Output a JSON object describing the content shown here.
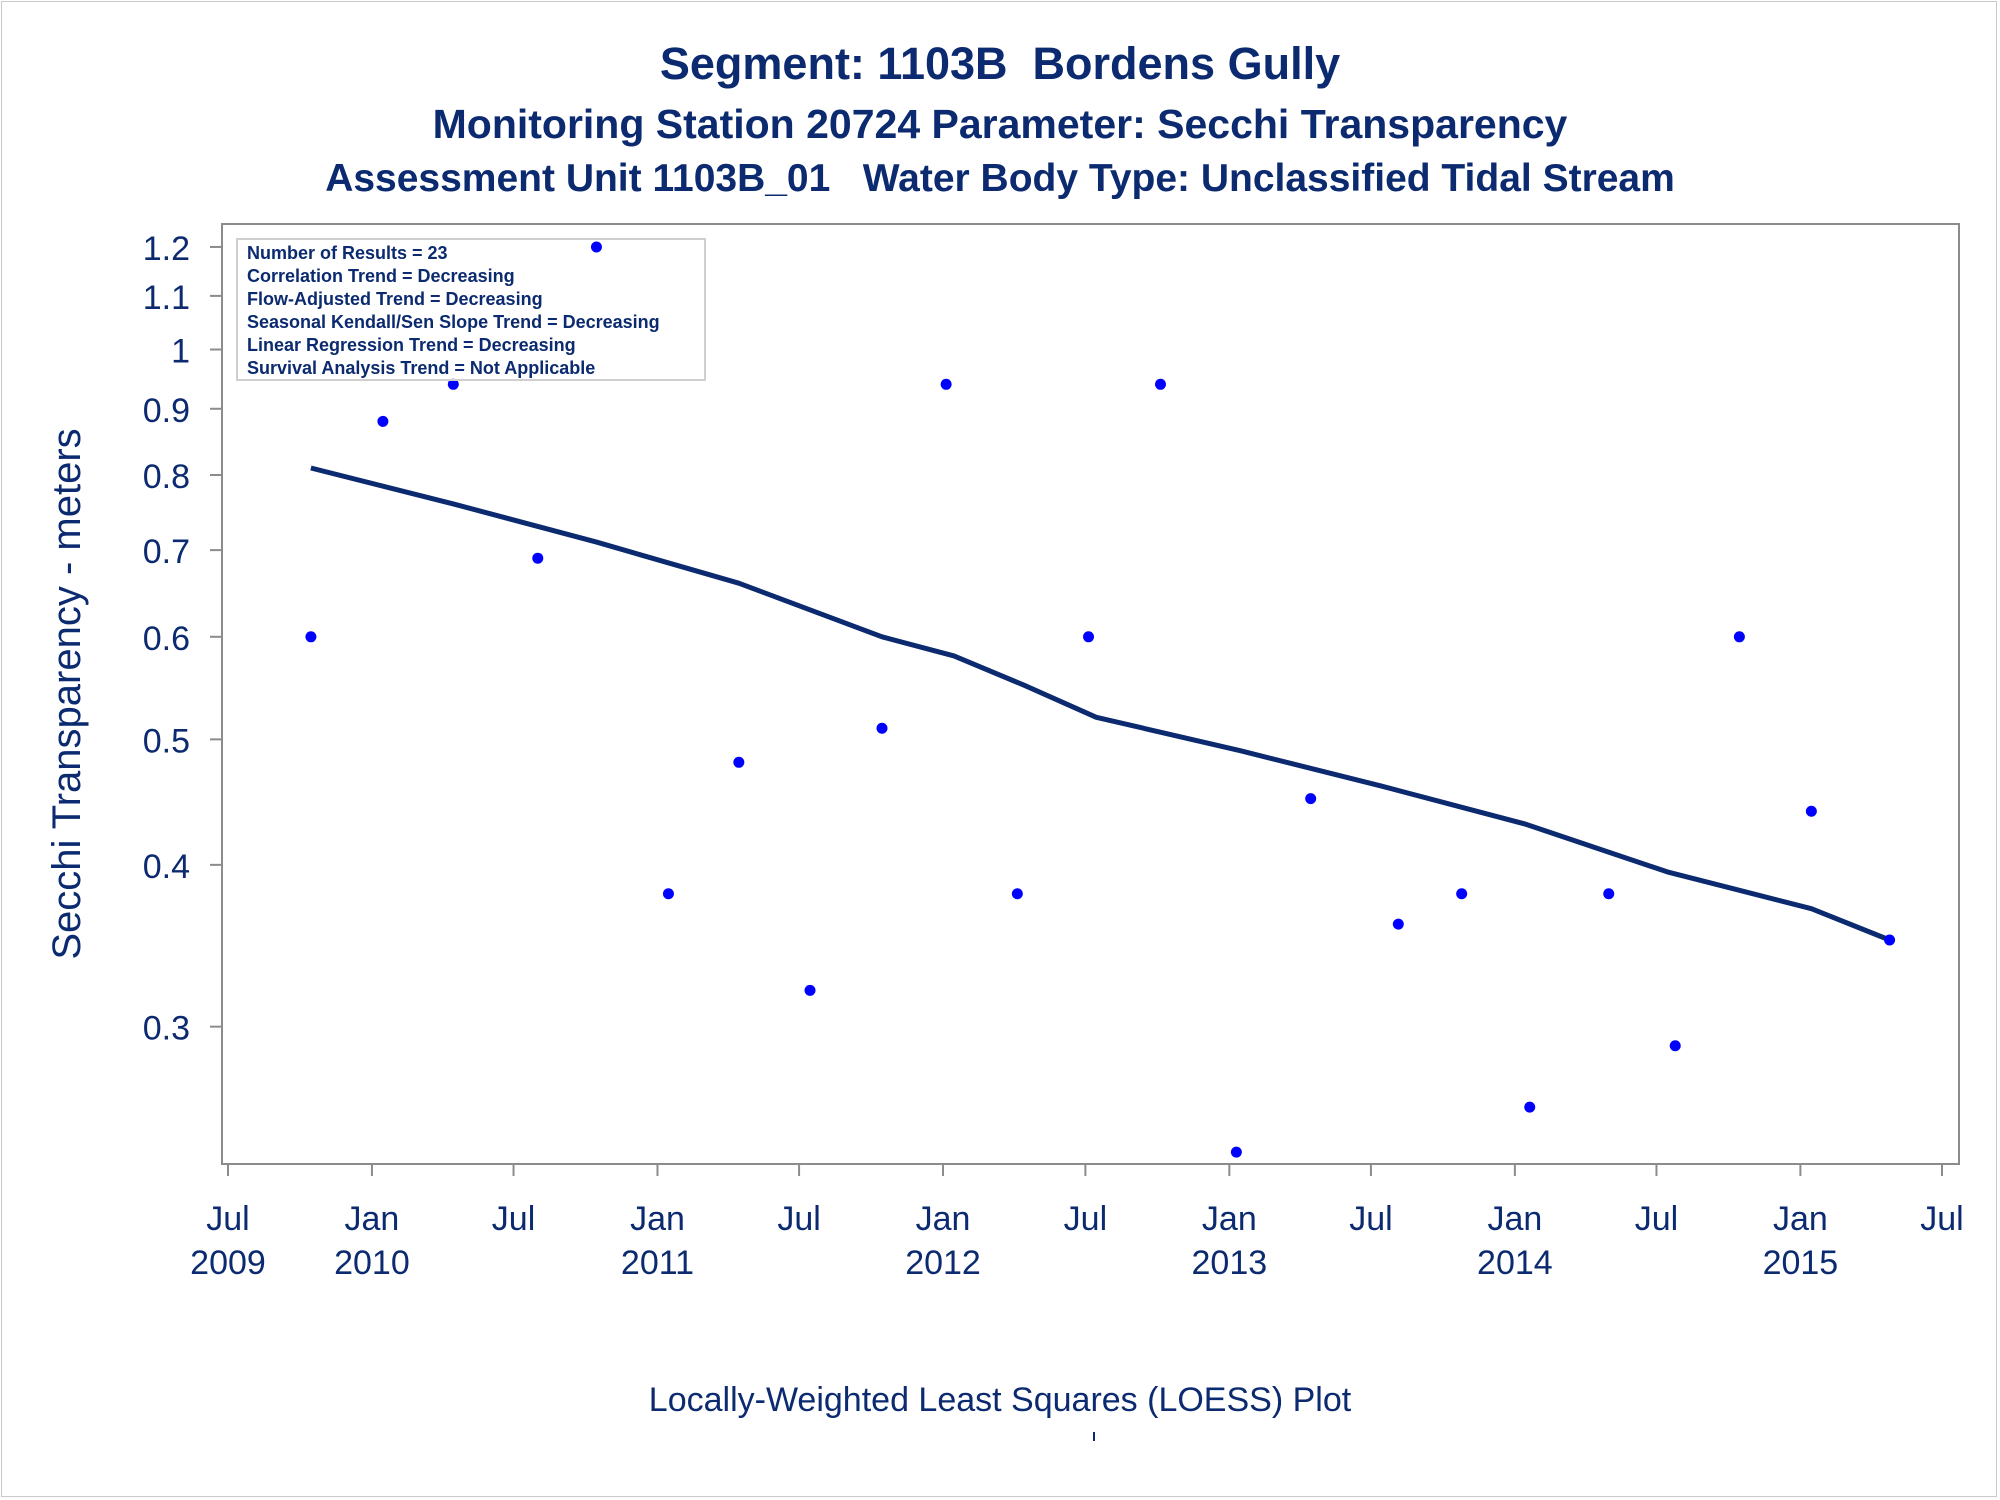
{
  "titles": {
    "line1": "Segment: 1103B  Bordens Gully",
    "line2": "Monitoring Station 20724 Parameter: Secchi Transparency",
    "line3": "Assessment Unit 1103B_01   Water Body Type: Unclassified Tidal Stream"
  },
  "footnote": "Locally-Weighted Least Squares (LOESS) Plot",
  "colors": {
    "text": "#0b2a6f",
    "points": "#0000ff",
    "loess": "#0b2a6f",
    "axis": "#8c8c8c"
  },
  "chart_data": {
    "type": "scatter",
    "xlabel": "",
    "ylabel": "Secchi Transparency - meters",
    "y_scale": "log",
    "ylim": [
      0.235,
      1.25
    ],
    "xlim": [
      "2009-07-01",
      "2015-07-01"
    ],
    "yticks": [
      {
        "value": 0.3,
        "label": "0.3"
      },
      {
        "value": 0.4,
        "label": "0.4"
      },
      {
        "value": 0.5,
        "label": "0.5"
      },
      {
        "value": 0.6,
        "label": "0.6"
      },
      {
        "value": 0.7,
        "label": "0.7"
      },
      {
        "value": 0.8,
        "label": "0.8"
      },
      {
        "value": 0.9,
        "label": "0.9"
      },
      {
        "value": 1.0,
        "label": "1"
      },
      {
        "value": 1.1,
        "label": "1.1"
      },
      {
        "value": 1.2,
        "label": "1.2"
      }
    ],
    "xticks": [
      {
        "date": "2009-07-01",
        "label1": "Jul",
        "label2": "2009"
      },
      {
        "date": "2010-01-01",
        "label1": "Jan",
        "label2": "2010"
      },
      {
        "date": "2010-07-01",
        "label1": "Jul",
        "label2": ""
      },
      {
        "date": "2011-01-01",
        "label1": "Jan",
        "label2": "2011"
      },
      {
        "date": "2011-07-01",
        "label1": "Jul",
        "label2": ""
      },
      {
        "date": "2012-01-01",
        "label1": "Jan",
        "label2": "2012"
      },
      {
        "date": "2012-07-01",
        "label1": "Jul",
        "label2": ""
      },
      {
        "date": "2013-01-01",
        "label1": "Jan",
        "label2": "2013"
      },
      {
        "date": "2013-07-01",
        "label1": "Jul",
        "label2": ""
      },
      {
        "date": "2014-01-01",
        "label1": "Jan",
        "label2": "2014"
      },
      {
        "date": "2014-07-01",
        "label1": "Jul",
        "label2": ""
      },
      {
        "date": "2015-01-01",
        "label1": "Jan",
        "label2": "2015"
      },
      {
        "date": "2015-07-01",
        "label1": "Jul",
        "label2": ""
      }
    ],
    "series": [
      {
        "points": [
          {
            "x": "2009-10-15",
            "y": 0.6
          },
          {
            "x": "2010-01-15",
            "y": 0.88
          },
          {
            "x": "2010-04-15",
            "y": 0.94
          },
          {
            "x": "2010-08-01",
            "y": 0.69
          },
          {
            "x": "2010-10-15",
            "y": 1.2
          },
          {
            "x": "2011-01-15",
            "y": 0.38
          },
          {
            "x": "2011-04-15",
            "y": 0.48
          },
          {
            "x": "2011-07-15",
            "y": 0.32
          },
          {
            "x": "2011-10-15",
            "y": 0.51
          },
          {
            "x": "2012-01-05",
            "y": 0.94
          },
          {
            "x": "2012-04-05",
            "y": 0.38
          },
          {
            "x": "2012-07-05",
            "y": 0.6
          },
          {
            "x": "2012-10-05",
            "y": 0.94
          },
          {
            "x": "2013-01-10",
            "y": 0.24
          },
          {
            "x": "2013-04-15",
            "y": 0.45
          },
          {
            "x": "2013-08-05",
            "y": 0.36
          },
          {
            "x": "2013-10-25",
            "y": 0.38
          },
          {
            "x": "2014-01-20",
            "y": 0.26
          },
          {
            "x": "2014-05-01",
            "y": 0.38
          },
          {
            "x": "2014-07-25",
            "y": 0.29
          },
          {
            "x": "2014-10-15",
            "y": 0.6
          },
          {
            "x": "2015-01-15",
            "y": 0.44
          },
          {
            "x": "2015-04-25",
            "y": 0.35
          }
        ]
      },
      {
        "type": "line",
        "points": [
          {
            "x": "2009-10-15",
            "y": 0.81
          },
          {
            "x": "2010-04-15",
            "y": 0.76
          },
          {
            "x": "2010-10-15",
            "y": 0.71
          },
          {
            "x": "2011-04-15",
            "y": 0.66
          },
          {
            "x": "2011-10-15",
            "y": 0.6
          },
          {
            "x": "2012-01-15",
            "y": 0.58
          },
          {
            "x": "2012-04-15",
            "y": 0.55
          },
          {
            "x": "2012-07-15",
            "y": 0.52
          },
          {
            "x": "2013-01-15",
            "y": 0.49
          },
          {
            "x": "2013-07-15",
            "y": 0.46
          },
          {
            "x": "2014-01-15",
            "y": 0.43
          },
          {
            "x": "2014-07-15",
            "y": 0.395
          },
          {
            "x": "2015-01-15",
            "y": 0.37
          },
          {
            "x": "2015-04-25",
            "y": 0.35
          }
        ]
      }
    ],
    "stats_box": [
      "Number of Results = 23",
      "Correlation Trend = Decreasing",
      "Flow-Adjusted Trend = Decreasing",
      "Seasonal Kendall/Sen Slope Trend = Decreasing",
      "Linear Regression Trend = Decreasing",
      "Survival Analysis Trend = Not Applicable"
    ],
    "grid": false
  }
}
